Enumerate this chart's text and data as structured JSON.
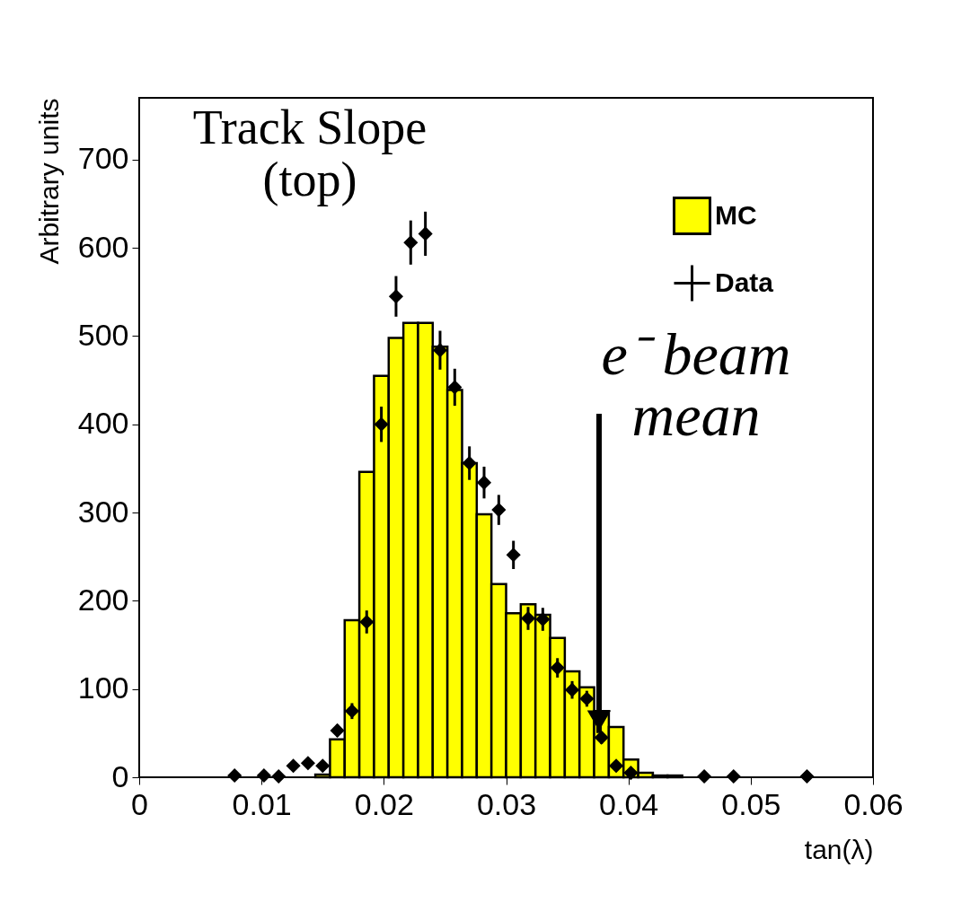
{
  "chart_data": {
    "type": "histogram",
    "xlabel": "tan(λ)",
    "ylabel": "Arbitrary units",
    "bins": [
      0,
      0.0012,
      0.0024,
      0.0036,
      0.0048,
      0.006,
      0.0072,
      0.0084,
      0.0096,
      0.0108,
      0.012,
      0.0132,
      0.0144,
      0.0156,
      0.0168,
      0.018,
      0.0192,
      0.0204,
      0.0216,
      0.0228,
      0.024,
      0.0252,
      0.0264,
      0.0276,
      0.0288,
      0.03,
      0.0312,
      0.0324,
      0.0336,
      0.0348,
      0.036,
      0.0372,
      0.0384,
      0.0396,
      0.0408,
      0.042,
      0.0432,
      0.0444,
      0.0456,
      0.0468,
      0.048,
      0.0492,
      0.0504,
      0.0516,
      0.0528,
      0.054,
      0.0552,
      0.0564,
      0.0576,
      0.0588,
      0.06
    ],
    "series": [
      {
        "name": "MC",
        "color": "#ffff00",
        "values": [
          0,
          0,
          0,
          0,
          0,
          0,
          0,
          0,
          0,
          0,
          0,
          0,
          3,
          43,
          178,
          346,
          455,
          498,
          515,
          515,
          488,
          439,
          356,
          298,
          219,
          186,
          196,
          184,
          158,
          120,
          102,
          75,
          57,
          20,
          5,
          2,
          2,
          0,
          0,
          0,
          0,
          0,
          0,
          0,
          0,
          0,
          0,
          0,
          0,
          0
        ]
      },
      {
        "name": "Data",
        "type": "scatter",
        "color": "#000000",
        "marker": "diamond",
        "x": [
          0.0078,
          0.0102,
          0.0114,
          0.0126,
          0.0138,
          0.015,
          0.0162,
          0.0174,
          0.0186,
          0.0198,
          0.021,
          0.0222,
          0.0234,
          0.0246,
          0.0258,
          0.027,
          0.0282,
          0.0294,
          0.0306,
          0.0318,
          0.033,
          0.0342,
          0.0354,
          0.0366,
          0.0378,
          0.039,
          0.0402,
          0.0462,
          0.0486,
          0.0546
        ],
        "values": [
          2,
          2,
          1,
          13,
          16,
          13,
          53,
          75,
          176,
          400,
          545,
          606,
          616,
          484,
          442,
          356,
          334,
          303,
          252,
          180,
          179,
          124,
          99,
          89,
          45,
          13,
          5,
          1,
          1,
          1
        ],
        "errors": [
          null,
          null,
          null,
          null,
          null,
          null,
          7,
          9,
          13,
          20,
          23,
          25,
          25,
          22,
          21,
          19,
          18,
          17,
          16,
          13,
          13,
          11,
          10,
          9,
          7,
          null,
          null,
          null,
          null,
          null
        ]
      }
    ],
    "xlim": [
      0,
      0.06
    ],
    "xticks": [
      0,
      0.01,
      0.02,
      0.03,
      0.04,
      0.05,
      0.06
    ],
    "ylim": [
      0,
      770
    ],
    "yticks": [
      0,
      100,
      200,
      300,
      400,
      500,
      600,
      700
    ],
    "grid": false,
    "legend": "top right",
    "annotations": [
      "Track Slope (top)",
      {
        "text": "e⁻ beam mean",
        "x": 0.0376,
        "y": 50
      }
    ]
  }
}
